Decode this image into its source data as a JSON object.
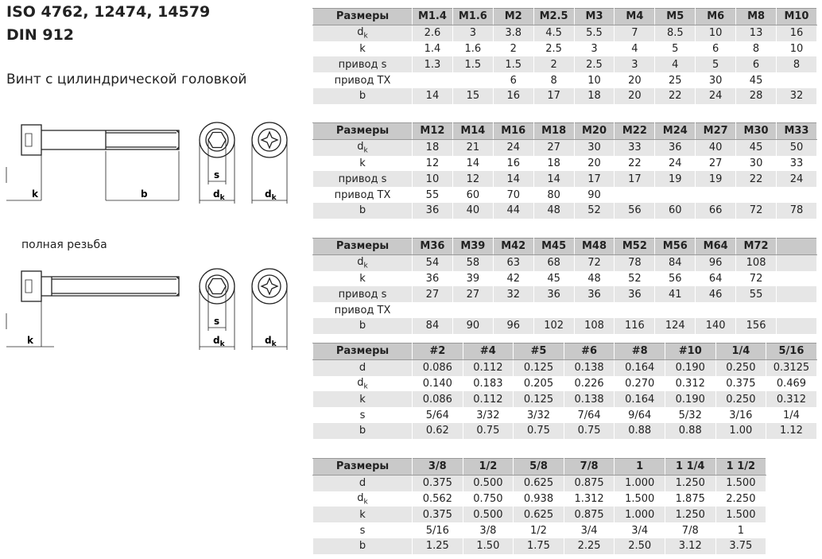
{
  "header": {
    "title_lines": [
      "ISO 4762, 12474, 14579",
      "DIN 912"
    ],
    "subtitle": "Винт с цилиндрической головкой",
    "full_thread": "полная резьба"
  },
  "drawings": [
    {
      "labels": [
        "k",
        "b",
        "s",
        "d",
        "k",
        "d",
        "k"
      ]
    },
    {
      "labels": [
        "k",
        "s",
        "d",
        "k",
        "d",
        "k"
      ]
    }
  ],
  "tables": [
    {
      "header": [
        "Размеры",
        "M1.4",
        "M1.6",
        "M2",
        "M2.5",
        "M3",
        "M4",
        "M5",
        "M6",
        "M8",
        "M10"
      ],
      "rows": [
        {
          "label": "d",
          "label_sub": "k",
          "cells": [
            "2.6",
            "3",
            "3.8",
            "4.5",
            "5.5",
            "7",
            "8.5",
            "10",
            "13",
            "16"
          ]
        },
        {
          "label": "k",
          "cells": [
            "1.4",
            "1.6",
            "2",
            "2.5",
            "3",
            "4",
            "5",
            "6",
            "8",
            "10"
          ]
        },
        {
          "label": "привод s",
          "cells": [
            "1.3",
            "1.5",
            "1.5",
            "2",
            "2.5",
            "3",
            "4",
            "5",
            "6",
            "8"
          ]
        },
        {
          "label": "привод TX",
          "cells": [
            null,
            null,
            "6",
            "8",
            "10",
            "20",
            "25",
            "30",
            "45",
            null
          ]
        },
        {
          "label": "b",
          "cells": [
            "14",
            "15",
            "16",
            "17",
            "18",
            "20",
            "22",
            "24",
            "28",
            "32"
          ]
        }
      ]
    },
    {
      "header": [
        "Размеры",
        "M12",
        "M14",
        "M16",
        "M18",
        "M20",
        "M22",
        "M24",
        "M27",
        "M30",
        "M33"
      ],
      "rows": [
        {
          "label": "d",
          "label_sub": "k",
          "cells": [
            "18",
            "21",
            "24",
            "27",
            "30",
            "33",
            "36",
            "40",
            "45",
            "50"
          ]
        },
        {
          "label": "k",
          "cells": [
            "12",
            "14",
            "16",
            "18",
            "20",
            "22",
            "24",
            "27",
            "30",
            "33"
          ]
        },
        {
          "label": "привод s",
          "cells": [
            "10",
            "12",
            "14",
            "14",
            "17",
            "17",
            "19",
            "19",
            "22",
            "24"
          ]
        },
        {
          "label": "привод TX",
          "cells": [
            "55",
            "60",
            "70",
            "80",
            "90",
            null,
            null,
            null,
            null,
            null
          ]
        },
        {
          "label": "b",
          "cells": [
            "36",
            "40",
            "44",
            "48",
            "52",
            "56",
            "60",
            "66",
            "72",
            "78"
          ]
        }
      ]
    },
    {
      "header": [
        "Размеры",
        "M36",
        "M39",
        "M42",
        "M45",
        "M48",
        "M52",
        "M56",
        "M64",
        "M72",
        null
      ],
      "rows": [
        {
          "label": "d",
          "label_sub": "k",
          "cells": [
            "54",
            "58",
            "63",
            "68",
            "72",
            "78",
            "84",
            "96",
            "108",
            null
          ]
        },
        {
          "label": "k",
          "cells": [
            "36",
            "39",
            "42",
            "45",
            "48",
            "52",
            "56",
            "64",
            "72",
            null
          ]
        },
        {
          "label": "привод s",
          "cells": [
            "27",
            "27",
            "32",
            "36",
            "36",
            "36",
            "41",
            "46",
            "55",
            null
          ]
        },
        {
          "label": "привод TX",
          "cells": [
            null,
            null,
            null,
            null,
            null,
            null,
            null,
            null,
            null,
            null
          ]
        },
        {
          "label": "b",
          "cells": [
            "84",
            "90",
            "96",
            "102",
            "108",
            "116",
            "124",
            "140",
            "156",
            null
          ]
        }
      ]
    },
    {
      "header": [
        "Размеры",
        "#2",
        "#4",
        "#5",
        "#6",
        "#8",
        "#10",
        "1/4",
        "5/16"
      ],
      "rows": [
        {
          "label": "d",
          "cells": [
            "0.086",
            "0.112",
            "0.125",
            "0.138",
            "0.164",
            "0.190",
            "0.250",
            "0.3125"
          ]
        },
        {
          "label": "d",
          "label_sub": "k",
          "cells": [
            "0.140",
            "0.183",
            "0.205",
            "0.226",
            "0.270",
            "0.312",
            "0.375",
            "0.469"
          ]
        },
        {
          "label": "k",
          "cells": [
            "0.086",
            "0.112",
            "0.125",
            "0.138",
            "0.164",
            "0.190",
            "0.250",
            "0.312"
          ]
        },
        {
          "label": "s",
          "cells": [
            "5/64",
            "3/32",
            "3/32",
            "7/64",
            "9/64",
            "5/32",
            "3/16",
            "1/4"
          ]
        },
        {
          "label": "b",
          "cells": [
            "0.62",
            "0.75",
            "0.75",
            "0.75",
            "0.88",
            "0.88",
            "1.00",
            "1.12"
          ]
        }
      ]
    },
    {
      "header": [
        "Размеры",
        "3/8",
        "1/2",
        "5/8",
        "7/8",
        "1",
        "1 1/4",
        "1 1/2"
      ],
      "rows": [
        {
          "label": "d",
          "cells": [
            "0.375",
            "0.500",
            "0.625",
            "0.875",
            "1.000",
            "1.250",
            "1.500"
          ]
        },
        {
          "label": "d",
          "label_sub": "k",
          "cells": [
            "0.562",
            "0.750",
            "0.938",
            "1.312",
            "1.500",
            "1.875",
            "2.250"
          ]
        },
        {
          "label": "k",
          "cells": [
            "0.375",
            "0.500",
            "0.625",
            "0.875",
            "1.000",
            "1.250",
            "1.500"
          ]
        },
        {
          "label": "s",
          "cells": [
            "5/16",
            "3/8",
            "1/2",
            "3/4",
            "3/4",
            "7/8",
            "1"
          ]
        },
        {
          "label": "b",
          "cells": [
            "1.25",
            "1.50",
            "1.75",
            "2.25",
            "2.50",
            "3.12",
            "3.75"
          ]
        }
      ]
    }
  ]
}
